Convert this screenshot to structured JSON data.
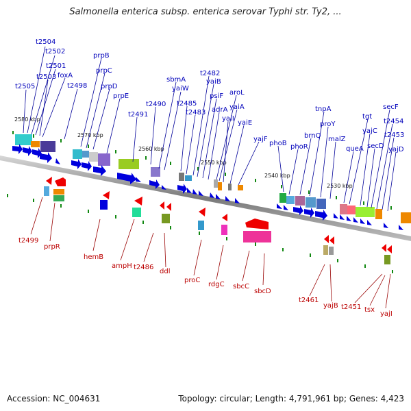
{
  "title": "Salmonella enterica subsp. enterica serovar Typhi str. Ty2, ...",
  "accession": "Accession: NC_004631",
  "topology": "Topology: circular; Length: 4,791,961 bp; Genes: 4,423",
  "kbp_labels": [
    "2580 kbp",
    "2570 kbp",
    "2560 kbp",
    "2550 kbp",
    "2540 kbp",
    "2530 kbp"
  ],
  "top_genes": [
    "t2504",
    "t2502",
    "t2501",
    "t2503",
    "foxA",
    "t2505",
    "t2498",
    "prpB",
    "prpC",
    "prpD",
    "prpE",
    "t2491",
    "t2490",
    "sbmA",
    "yaiW",
    "t2485",
    "t2483",
    "t2482",
    "yaiB",
    "psiF",
    "adrA",
    "aroL",
    "yaiA",
    "yaiI",
    "yaiE",
    "yajF",
    "phoB",
    "phoR",
    "brnQ",
    "tnpA",
    "proY",
    "malZ",
    "queA",
    "tgt",
    "yajC",
    "secD",
    "secF",
    "t2454",
    "t2453",
    "yajD"
  ],
  "bottom_genes": [
    "t2499",
    "prpR",
    "hemB",
    "ampH",
    "t2486",
    "ddl",
    "proC",
    "rdgC",
    "sbcC",
    "sbcD",
    "t2461",
    "yajB",
    "t2451",
    "tsx",
    "yajI"
  ],
  "colors": {
    "forward": "#0000dd",
    "reverse": "#ee0000",
    "backbone": "#8a8a8a",
    "top_label": "#0000bb",
    "bottom_label": "#bb0000",
    "tick": "#118811"
  }
}
